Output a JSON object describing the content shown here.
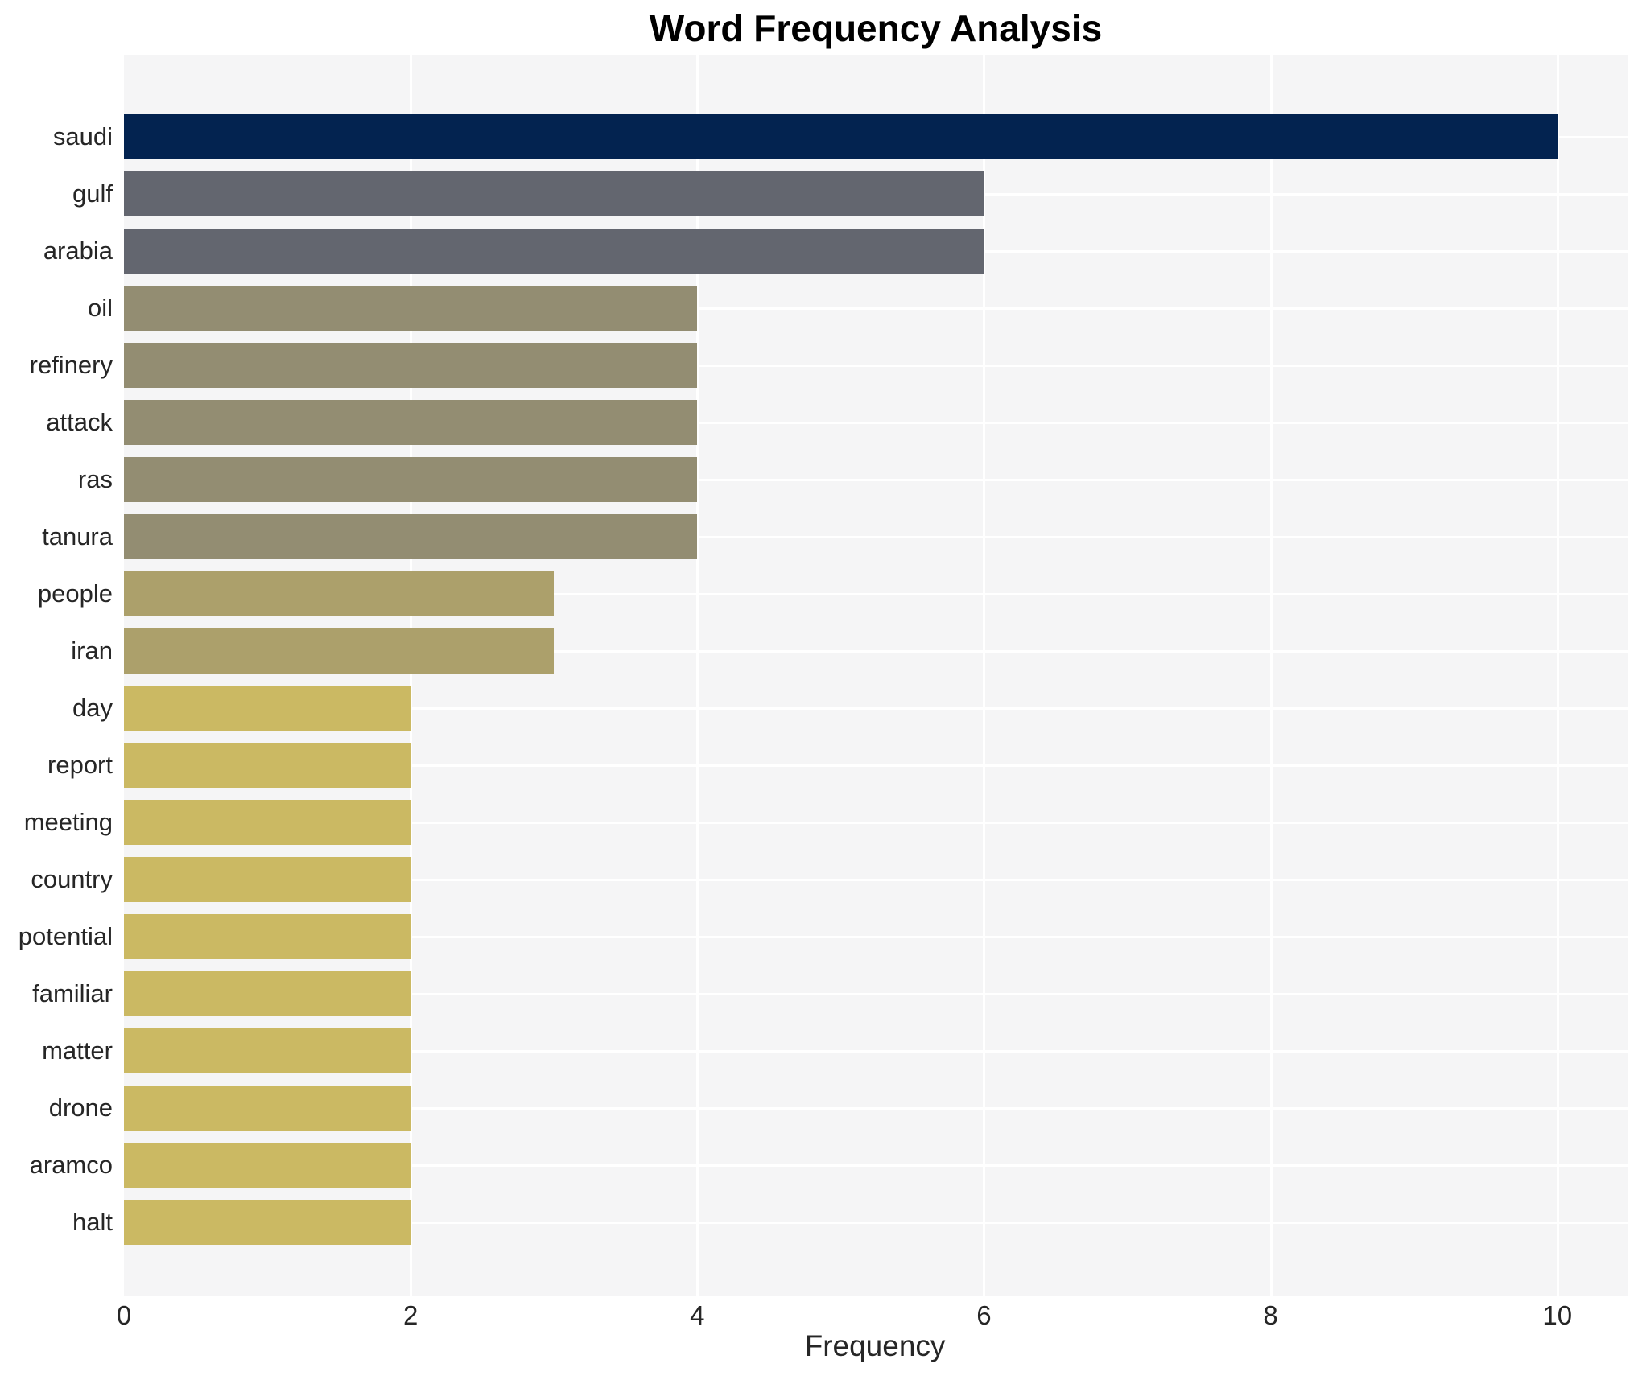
{
  "chart_data": {
    "type": "bar",
    "orientation": "horizontal",
    "title": "Word Frequency Analysis",
    "xlabel": "Frequency",
    "ylabel": "",
    "categories": [
      "saudi",
      "gulf",
      "arabia",
      "oil",
      "refinery",
      "attack",
      "ras",
      "tanura",
      "people",
      "iran",
      "day",
      "report",
      "meeting",
      "country",
      "potential",
      "familiar",
      "matter",
      "drone",
      "aramco",
      "halt"
    ],
    "values": [
      10,
      6,
      6,
      4,
      4,
      4,
      4,
      4,
      3,
      3,
      2,
      2,
      2,
      2,
      2,
      2,
      2,
      2,
      2,
      2
    ],
    "bar_colors": [
      "#032350",
      "#63666F",
      "#63666F",
      "#938D72",
      "#938D72",
      "#938D72",
      "#938D72",
      "#938D72",
      "#ACA06B",
      "#ACA06B",
      "#CBB963",
      "#CBB963",
      "#CBB963",
      "#CBB963",
      "#CBB963",
      "#CBB963",
      "#CBB963",
      "#CBB963",
      "#CBB963",
      "#CBB963"
    ],
    "xticks": [
      0,
      2,
      4,
      6,
      8,
      10
    ],
    "xlim": [
      0,
      10.49
    ],
    "grid": true,
    "legend_position": "none",
    "plot_background": "#F5F5F6",
    "grid_color": "#FFFFFF",
    "text_color": "#262626",
    "title_color": "#000000"
  }
}
